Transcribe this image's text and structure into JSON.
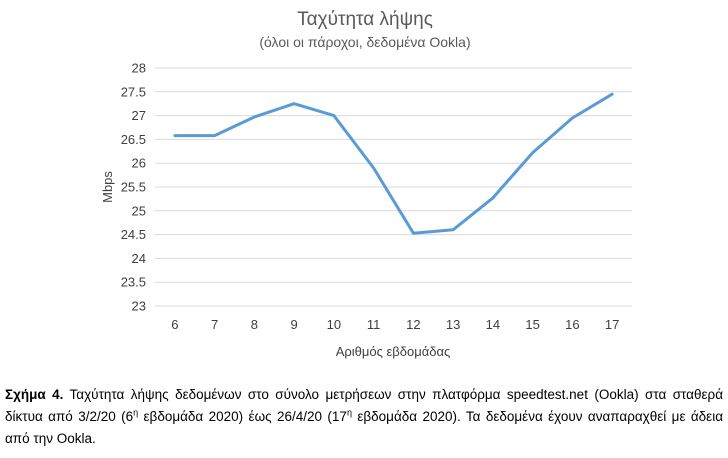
{
  "chart_data": {
    "type": "line",
    "title": "Ταχύτητα λήψης",
    "subtitle": "(όλοι οι πάροχοι, δεδομένα Ookla)",
    "xlabel": "Αριθμός εβδομάδας",
    "ylabel": "Mbps",
    "x": [
      6,
      7,
      8,
      9,
      10,
      11,
      12,
      13,
      14,
      15,
      16,
      17
    ],
    "series": [
      {
        "values": [
          26.58,
          26.58,
          26.97,
          27.25,
          27.0,
          25.9,
          24.53,
          24.6,
          25.27,
          26.22,
          26.95,
          27.45
        ]
      }
    ],
    "ylim": [
      23,
      28
    ],
    "yticks": [
      "23",
      "23.5",
      "24",
      "24.5",
      "25",
      "25.5",
      "26",
      "26.5",
      "27",
      "27.5",
      "28"
    ],
    "grid": "horizontal",
    "line_color": "#5b9bd5",
    "grid_color": "#d9d9d9"
  },
  "caption": {
    "label": "Σχήμα 4.",
    "part1": " Ταχύτητα λήψης δεδομένων στο σύνολο μετρήσεων στην πλατφόρμα speedtest.net (Ookla) στα σταθερά δίκτυα από 3/2/20 (6",
    "sup1": "η",
    "part2": " εβδομάδα 2020) έως 26/4/20 (17",
    "sup2": "η",
    "part3": " εβδομάδα 2020). Τα δεδομένα έχουν αναπαραχθεί με άδεια από την Ookla."
  }
}
